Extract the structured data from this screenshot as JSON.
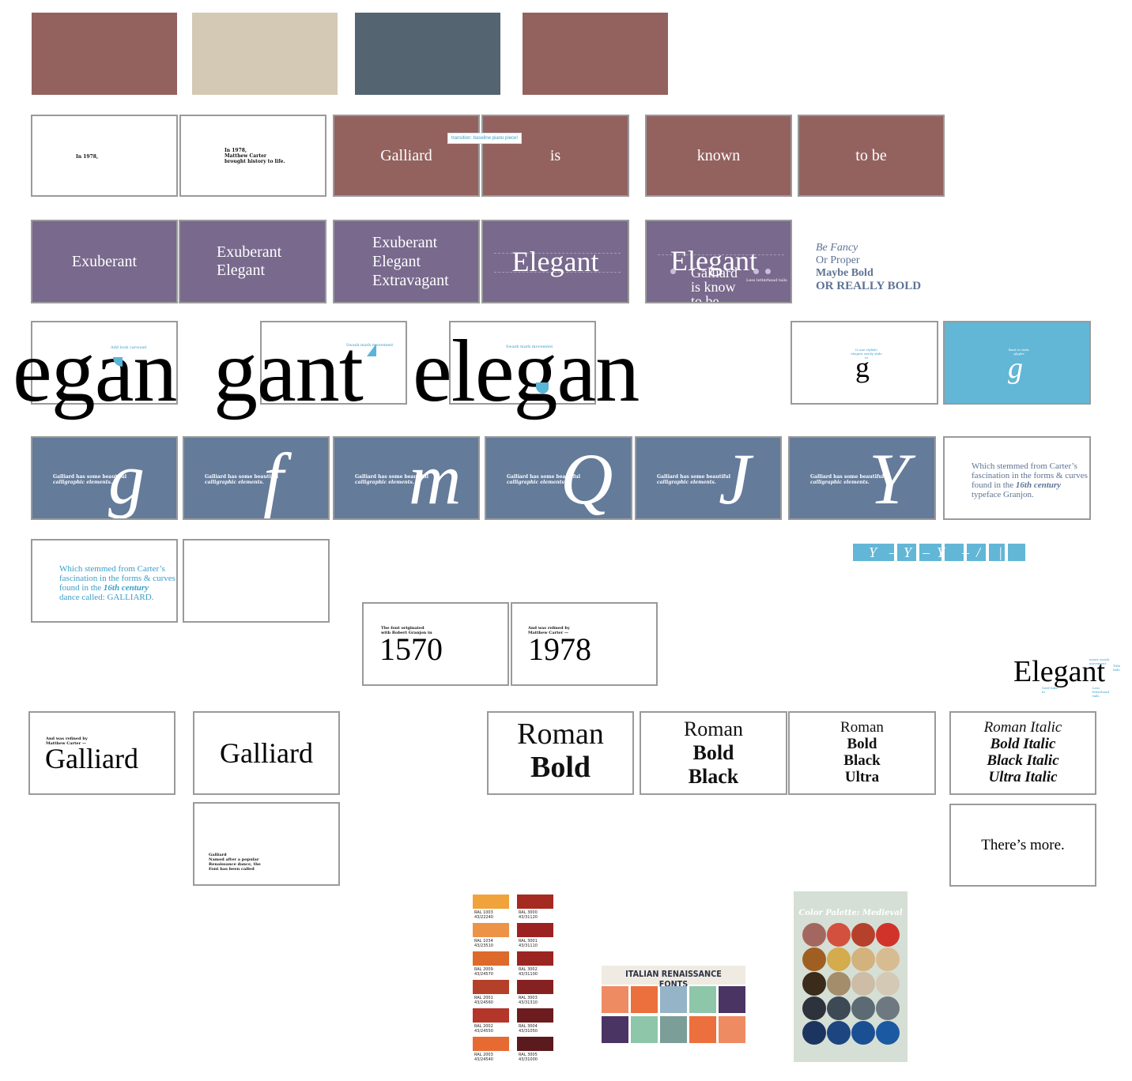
{
  "row1": {
    "colors": [
      "#93625f",
      "#d4c9b5",
      "#546470",
      "#93625f"
    ]
  },
  "row2": {
    "slide1": "In 1978,",
    "slide2_line1": "In 1978,",
    "slide2_line2": "Matthew Carter",
    "slide2_line3": "brought history to life.",
    "word1": "Galliard",
    "word2": "is",
    "word3": "known",
    "word4": "to be",
    "annotation": "transition: baseline piano piece!"
  },
  "row3": {
    "a1": "Exuberant",
    "b1": "Exuberant",
    "b2": "Elegant",
    "c1": "Exuberant",
    "c2": "Elegant",
    "c3": "Extravagant",
    "d1": "Elegant",
    "e1": "Elegant",
    "e2": "Galliard",
    "e3": "is know",
    "e4": "to be",
    "e_note": "Less letterhead tails",
    "styles": {
      "fancy": "Be Fancy",
      "proper": "Or Proper",
      "bold": "Maybe Bold",
      "really_bold": "OR REALLY BOLD"
    }
  },
  "row4": {
    "word1": "egan",
    "word2": "gant",
    "word3": "elegan",
    "note1": "Add look carousel",
    "note2": "Swash mark movement",
    "note3": "Swash mark movement",
    "g_plain_note": "Is one stylish/ elegant swirly slide to",
    "g_plain": "g",
    "g_cyan_note": "Back to italic glyphs",
    "g_cyan": "g"
  },
  "row5": {
    "caption_line1": "Galliard has some beautiful",
    "caption_line2": "calligraphic elements.",
    "glyphs": [
      "g",
      "f",
      "m",
      "Q",
      "J",
      "Y"
    ],
    "stemmed_l1": "Which stemmed from Carter’s",
    "stemmed_l2": "fascination in the forms & curves",
    "stemmed_l3": "found in the",
    "stemmed_l3_em": "16th century",
    "stemmed_l4": "typeface Granjon."
  },
  "row6": {
    "teal_l1": "Which stemmed from Carter’s",
    "teal_l2": "fascination in the forms & curves",
    "teal_l3": "found in the",
    "teal_l3_em": "16th century",
    "teal_l4": "dance called: GALLIARD.",
    "strip_glyphs": [
      "Y",
      "–",
      "Y",
      "–",
      "Y",
      "–",
      "/",
      "|",
      "/"
    ]
  },
  "years": {
    "y1_note_l1": "The font originated",
    "y1_note_l2": "with Robert Granjon in",
    "y1": "1570",
    "y2_note_l1": "And was refined by",
    "y2_note_l2": "Matthew Carter —",
    "y2": "1978",
    "elegant": "Elegant",
    "elegant_note1": "insert swash movement",
    "elegant_note2": "Title fade",
    "elegant_note3": "Serif fade in",
    "elegant_note4": "Less letterhead tails"
  },
  "row8": {
    "gal1_note_l1": "And was refined by",
    "gal1_note_l2": "Matthew Carter —",
    "gal1": "Galliard",
    "gal2": "Galliard",
    "gal3_l1": "Galliard",
    "gal3_l2": "Named after a popular",
    "gal3_l3": "Renaissance dance, the",
    "gal3_l4": "Font has been called",
    "w1_l1": "Roman",
    "w1_l2": "Bold",
    "w2_l1": "Roman",
    "w2_l2": "Bold",
    "w2_l3": "Black",
    "w3_l1": "Roman",
    "w3_l2": "Bold",
    "w3_l3": "Black",
    "w3_l4": "Ultra",
    "w4_l1": "Roman Italic",
    "w4_l2": "Bold Italic",
    "w4_l3": "Black Italic",
    "w4_l4": "Ultra Italic",
    "more": "There’s more."
  },
  "ral": {
    "left": [
      {
        "code": "RAL 1003",
        "ref": "43/22240",
        "color": "#f0a33a"
      },
      {
        "code": "RAL 1034",
        "ref": "43/23510",
        "color": "#ec9348"
      },
      {
        "code": "RAL 2009",
        "ref": "43/24570",
        "color": "#dd6a2a"
      },
      {
        "code": "RAL 2001",
        "ref": "43/24560",
        "color": "#b5402a"
      },
      {
        "code": "RAL 2002",
        "ref": "43/24550",
        "color": "#b4352a"
      },
      {
        "code": "RAL 2003",
        "ref": "43/24540",
        "color": "#e86a33"
      }
    ],
    "right": [
      {
        "code": "RAL 3000",
        "ref": "43/31120",
        "color": "#a52a22"
      },
      {
        "code": "RAL 3001",
        "ref": "43/31110",
        "color": "#9c2222"
      },
      {
        "code": "RAL 3002",
        "ref": "43/31100",
        "color": "#9b2520"
      },
      {
        "code": "RAL 3003",
        "ref": "43/31310",
        "color": "#862121"
      },
      {
        "code": "RAL 3004",
        "ref": "43/31050",
        "color": "#6c1c1e"
      },
      {
        "code": "RAL 3005",
        "ref": "43/31000",
        "color": "#5b1a1d"
      }
    ]
  },
  "renaissance": {
    "title": "ITALIAN RENAISSANCE FONTS",
    "row1": [
      "#ef8b63",
      "#ec6f3e",
      "#95b4c7",
      "#8ec6a9",
      "#4a3464"
    ],
    "row2": [
      "#4a3464",
      "#8ec6a9",
      "#7b9e99",
      "#ec6f3e",
      "#ef8b63"
    ]
  },
  "medieval": {
    "title": "Color Palette: Medieval",
    "bg": "#d5dfd5",
    "rows": [
      [
        "#a4675f",
        "#d3503f",
        "#b5412d",
        "#d1332b"
      ],
      [
        "#a05f22",
        "#d4ab4d",
        "#d4b27d",
        "#d8bc91"
      ],
      [
        "#3b2b1a",
        "#a38d6b",
        "#cdbca6",
        "#d4c9b5"
      ],
      [
        "#2d323c",
        "#3d4955",
        "#5c6a74",
        "#6e7880"
      ],
      [
        "#1c3560",
        "#1d4580",
        "#1b4f93",
        "#1c59a3"
      ]
    ]
  }
}
